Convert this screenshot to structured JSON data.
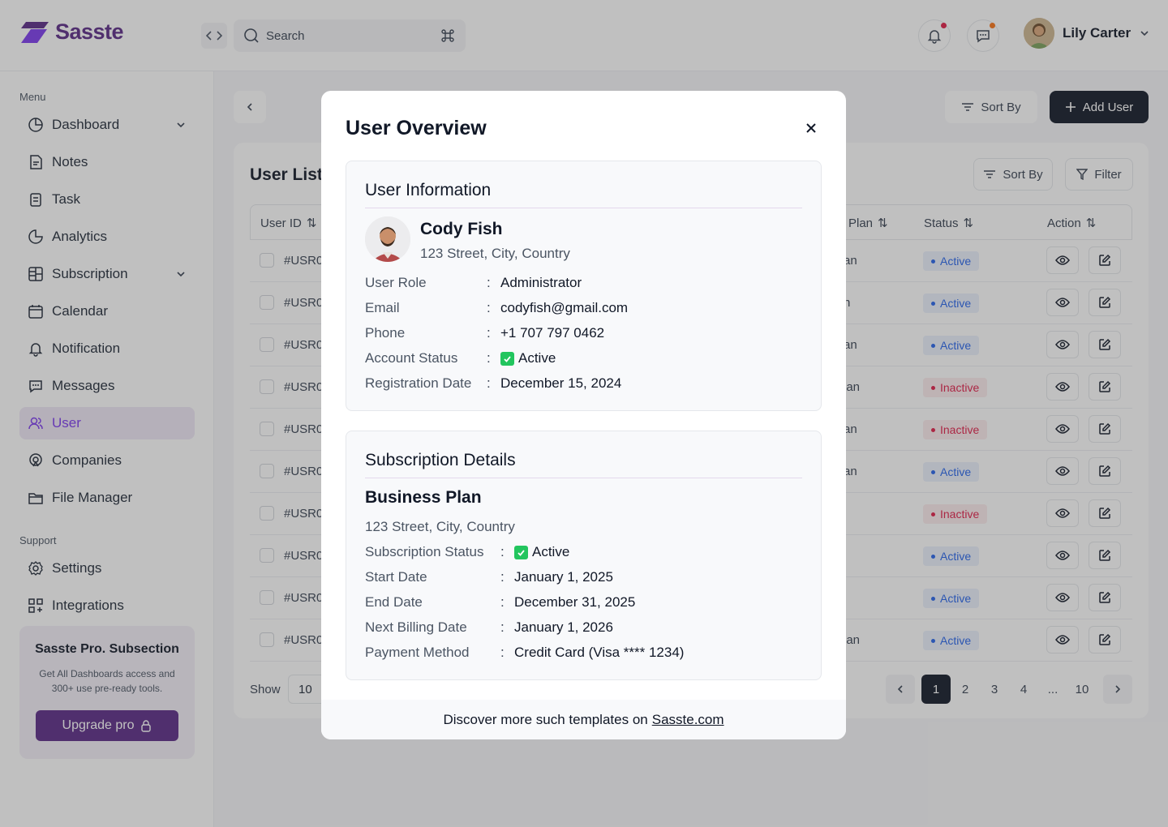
{
  "header": {
    "logo_text": "Sasste",
    "search_placeholder": "Search",
    "search_shortcut_icon": "command-icon",
    "user_name": "Lily Carter",
    "notification_dot_color": "#e11d48",
    "message_dot_color": "#f97316"
  },
  "sidebar": {
    "menu_label": "Menu",
    "support_label": "Support",
    "menu_items": [
      {
        "label": "Dashboard",
        "icon": "dashboard-icon"
      },
      {
        "label": "Notes",
        "icon": "notes-icon"
      },
      {
        "label": "Task",
        "icon": "task-icon"
      },
      {
        "label": "Analytics",
        "icon": "analytics-icon"
      },
      {
        "label": "Subscription",
        "icon": "subscription-icon"
      },
      {
        "label": "Calendar",
        "icon": "calendar-icon"
      },
      {
        "label": "Notification",
        "icon": "bell-icon"
      },
      {
        "label": "Messages",
        "icon": "message-icon"
      },
      {
        "label": "User",
        "icon": "users-icon"
      },
      {
        "label": "Companies",
        "icon": "companies-icon"
      },
      {
        "label": "File Manager",
        "icon": "folder-icon"
      }
    ],
    "support_items": [
      {
        "label": "Settings",
        "icon": "gear-icon"
      },
      {
        "label": "Integrations",
        "icon": "integrations-icon"
      }
    ],
    "promo": {
      "title": "Sasste Pro. Subsection",
      "text": "Get All Dashboards access and 300+ use pre-ready tools.",
      "button": "Upgrade pro"
    }
  },
  "toolbar": {
    "sort_label": "Sort By",
    "add_user_label": "Add User"
  },
  "user_list": {
    "title": "User List",
    "sort_label": "Sort By",
    "filter_label": "Filter",
    "columns": {
      "user_id": "User ID",
      "plan": "Plan",
      "status": "Status",
      "action": "Action"
    },
    "rows": [
      {
        "id": "#USR0",
        "plan": "an",
        "status": "Active"
      },
      {
        "id": "#USR0",
        "plan": "n",
        "status": "Active"
      },
      {
        "id": "#USR0",
        "plan": "an",
        "status": "Active"
      },
      {
        "id": "#USR0",
        "plan": "lan",
        "status": "Inactive"
      },
      {
        "id": "#USR0",
        "plan": "an",
        "status": "Inactive"
      },
      {
        "id": "#USR0",
        "plan": "an",
        "status": "Active"
      },
      {
        "id": "#USR0",
        "plan": "",
        "status": "Inactive"
      },
      {
        "id": "#USR0",
        "plan": "",
        "status": "Active"
      },
      {
        "id": "#USR0",
        "plan": "",
        "status": "Active"
      },
      {
        "id": "#USR0",
        "plan": "lan",
        "status": "Active"
      }
    ],
    "show_label": "Show",
    "show_value": "10",
    "pagination": [
      "1",
      "2",
      "3",
      "4",
      "...",
      "10"
    ]
  },
  "modal": {
    "title": "User Overview",
    "user_info": {
      "heading": "User Information",
      "name": "Cody Fish",
      "address": "123 Street, City, Country",
      "fields": [
        {
          "key": "User Role",
          "value": "Administrator"
        },
        {
          "key": "Email",
          "value": "codyfish@gmail.com"
        },
        {
          "key": "Phone",
          "value": "+1 707 797 0462"
        },
        {
          "key": "Account Status",
          "value": "Active",
          "check": true
        },
        {
          "key": "Registration Date",
          "value": "December 15, 2024"
        }
      ]
    },
    "subscription": {
      "heading": "Subscription Details",
      "plan_name": "Business Plan",
      "address": "123 Street, City, Country",
      "fields": [
        {
          "key": "Subscription Status",
          "value": "Active",
          "check": true
        },
        {
          "key": "Start Date",
          "value": "January 1, 2025"
        },
        {
          "key": "End Date",
          "value": "December 31, 2025"
        },
        {
          "key": "Next Billing Date",
          "value": "January 1, 2026"
        },
        {
          "key": "Payment Method",
          "value": "Credit Card (Visa **** 1234)"
        }
      ]
    },
    "footer_text": "Discover more such templates on",
    "footer_link": "Sasste.com"
  }
}
